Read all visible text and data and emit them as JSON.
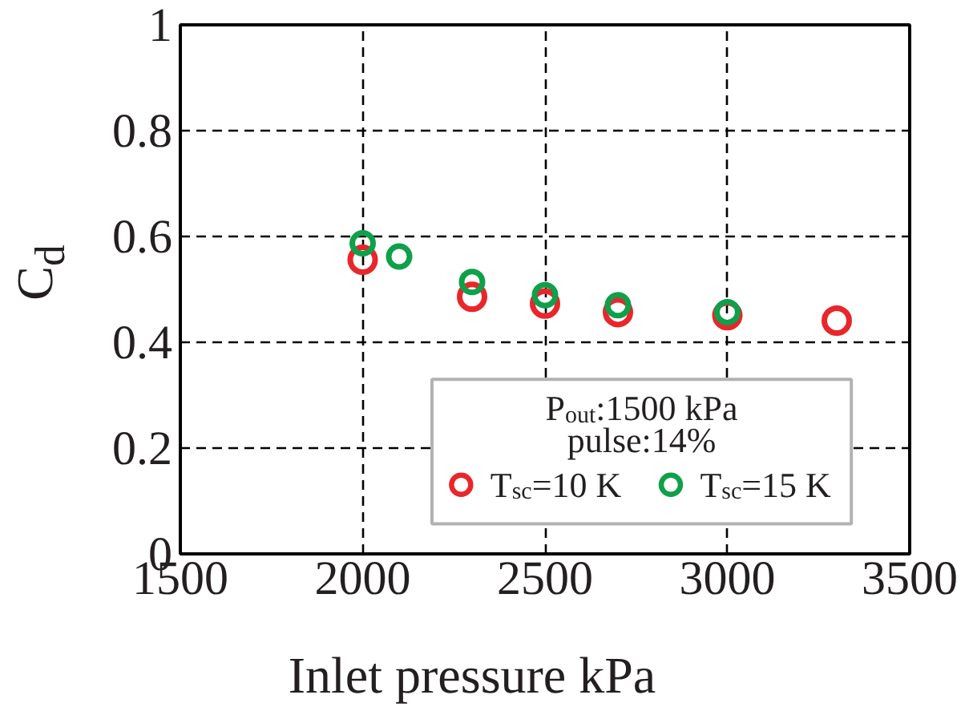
{
  "chart_data": {
    "type": "scatter",
    "xlabel": "Inlet pressure kPa",
    "ylabel": "C$_{d}$",
    "legend_title": "P$_{out}$:1500 kPa\npulse:14%",
    "series": [
      {
        "name": "T$_{sc}$=10 K",
        "color": "#e8262b",
        "x": [
          2000,
          2300,
          2500,
          2700,
          3000,
          3300
        ],
        "values": [
          0.556,
          0.486,
          0.473,
          0.457,
          0.451,
          0.441
        ]
      },
      {
        "name": "T$_{sc}$=15 K",
        "color": "#0ea04a",
        "x": [
          2000,
          2100,
          2300,
          2500,
          2700,
          3000
        ],
        "values": [
          0.587,
          0.562,
          0.514,
          0.489,
          0.47,
          0.457
        ]
      }
    ],
    "xlim": [
      1500,
      3500
    ],
    "xticks": [
      1500,
      2000,
      2500,
      3000,
      3500
    ],
    "ylim": [
      0,
      1
    ],
    "yticks": [
      0,
      0.2,
      0.4,
      0.6,
      0.8,
      1
    ],
    "grid": true,
    "legend": "bottom right",
    "marker": "circle"
  }
}
